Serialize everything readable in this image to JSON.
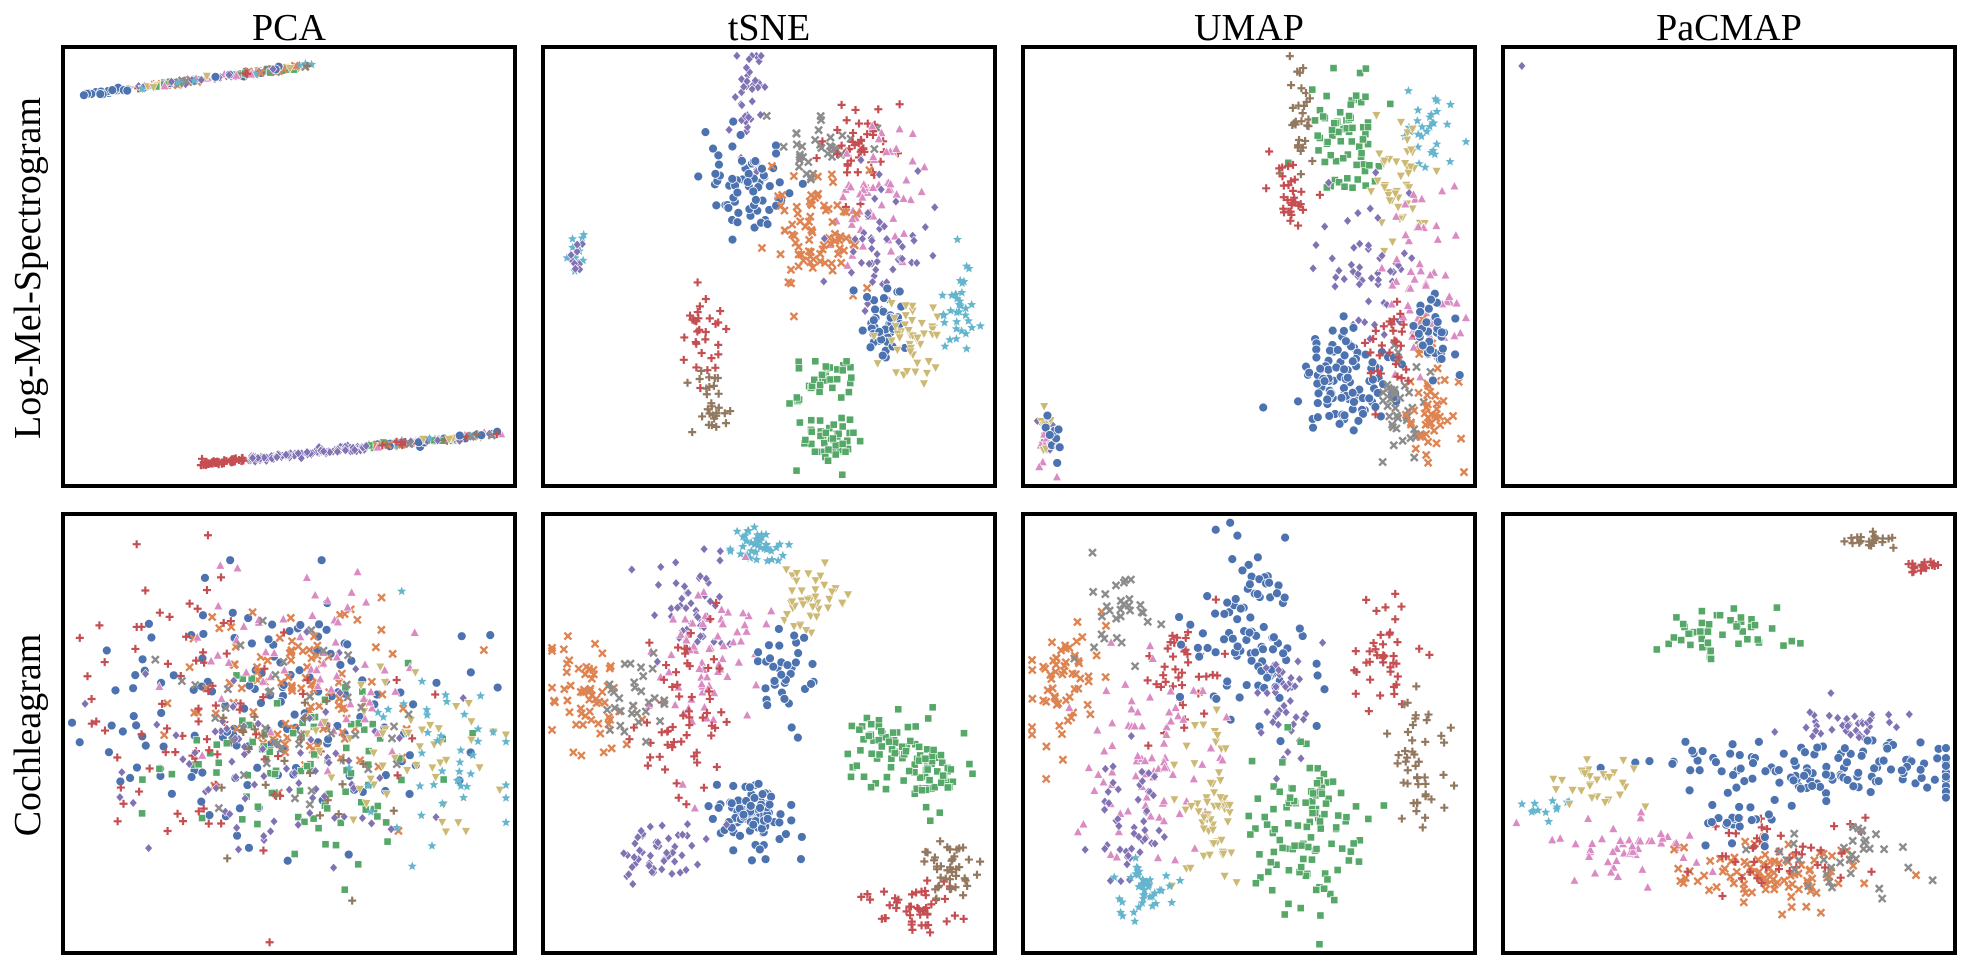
{
  "columns": [
    "PCA",
    "tSNE",
    "UMAP",
    "PaCMAP"
  ],
  "rows": [
    "Log-Mel-Spectrogram",
    "Cochleagram"
  ],
  "palette": {
    "blue": "#4c72b0",
    "orange": "#dd8452",
    "green": "#55a868",
    "red": "#c44e52",
    "purple": "#8172b3",
    "brown": "#937860",
    "pink": "#da8bc3",
    "gray": "#8c8c8c",
    "olive": "#ccb974",
    "cyan": "#64b5cd"
  },
  "chart_data": [
    {
      "type": "scatter",
      "row": "Log-Mel-Spectrogram",
      "method": "PCA",
      "xlim": [
        0,
        100
      ],
      "ylim": [
        0,
        100
      ],
      "grid": false,
      "legend": "none",
      "classes": 10
    },
    {
      "type": "scatter",
      "row": "Log-Mel-Spectrogram",
      "method": "tSNE",
      "xlim": [
        0,
        100
      ],
      "ylim": [
        0,
        100
      ],
      "grid": false,
      "legend": "none",
      "classes": 10
    },
    {
      "type": "scatter",
      "row": "Log-Mel-Spectrogram",
      "method": "UMAP",
      "xlim": [
        0,
        100
      ],
      "ylim": [
        0,
        100
      ],
      "grid": false,
      "legend": "none",
      "classes": 10
    },
    {
      "type": "scatter",
      "row": "Log-Mel-Spectrogram",
      "method": "PaCMAP",
      "xlim": [
        0,
        100
      ],
      "ylim": [
        0,
        100
      ],
      "grid": false,
      "legend": "none",
      "classes": 10
    },
    {
      "type": "scatter",
      "row": "Cochleagram",
      "method": "PCA",
      "xlim": [
        0,
        100
      ],
      "ylim": [
        0,
        100
      ],
      "grid": false,
      "legend": "none",
      "classes": 10
    },
    {
      "type": "scatter",
      "row": "Cochleagram",
      "method": "tSNE",
      "xlim": [
        0,
        100
      ],
      "ylim": [
        0,
        100
      ],
      "grid": false,
      "legend": "none",
      "classes": 10
    },
    {
      "type": "scatter",
      "row": "Cochleagram",
      "method": "UMAP",
      "xlim": [
        0,
        100
      ],
      "ylim": [
        0,
        100
      ],
      "grid": false,
      "legend": "none",
      "classes": 10
    },
    {
      "type": "scatter",
      "row": "Cochleagram",
      "method": "PaCMAP",
      "xlim": [
        0,
        100
      ],
      "ylim": [
        0,
        100
      ],
      "grid": false,
      "legend": "none",
      "classes": 10
    }
  ]
}
